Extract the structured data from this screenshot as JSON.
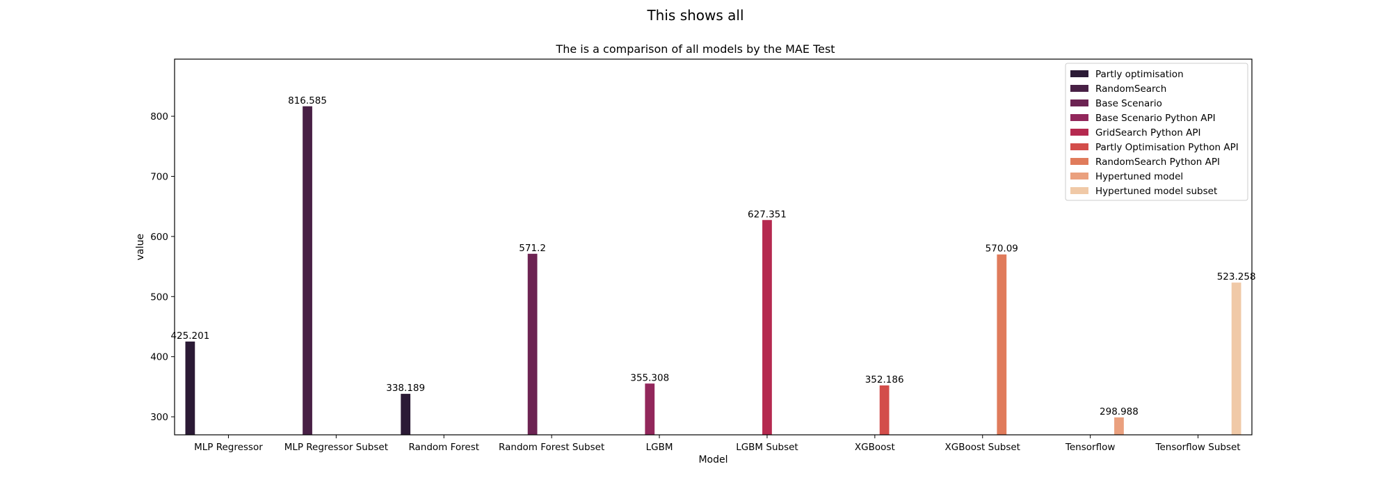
{
  "chart_data": {
    "type": "bar",
    "suptitle": "This shows all",
    "title": "The is a comparison of all models by the MAE Test",
    "xlabel": "Model",
    "ylabel": "value",
    "ylim": [
      270,
      895
    ],
    "yticks": [
      300,
      400,
      500,
      600,
      700,
      800
    ],
    "categories": [
      "MLP Regressor",
      "MLP Regressor Subset",
      "Random Forest",
      "Random Forest Subset",
      "LGBM",
      "LGBM Subset",
      "XGBoost",
      "XGBoost Subset",
      "Tensorflow",
      "Tensorflow Subset"
    ],
    "legend_position": "top-right",
    "series": [
      {
        "name": "Partly optimisation",
        "color": "#2b1a35",
        "values": [
          425.201,
          null,
          338.189,
          null,
          null,
          null,
          null,
          null,
          null,
          null
        ]
      },
      {
        "name": "RandomSearch",
        "color": "#482045",
        "values": [
          null,
          816.585,
          null,
          null,
          null,
          null,
          null,
          null,
          null,
          null
        ]
      },
      {
        "name": "Base Scenario",
        "color": "#6c2352",
        "values": [
          null,
          null,
          null,
          571.2,
          null,
          null,
          null,
          null,
          null,
          null
        ]
      },
      {
        "name": "Base Scenario Python API",
        "color": "#92275b",
        "values": [
          null,
          null,
          null,
          null,
          355.308,
          null,
          null,
          null,
          null,
          null
        ]
      },
      {
        "name": "GridSearch Python API",
        "color": "#b5294f",
        "values": [
          null,
          null,
          null,
          null,
          null,
          627.351,
          null,
          null,
          null,
          null
        ]
      },
      {
        "name": "Partly Optimisation Python API",
        "color": "#d34d4a",
        "values": [
          null,
          null,
          null,
          null,
          null,
          null,
          352.186,
          null,
          null,
          null
        ]
      },
      {
        "name": "RandomSearch Python API",
        "color": "#e07b5b",
        "values": [
          null,
          null,
          null,
          null,
          null,
          null,
          null,
          570.09,
          null,
          null
        ]
      },
      {
        "name": "Hypertuned model",
        "color": "#eaa07e",
        "values": [
          null,
          null,
          null,
          null,
          null,
          null,
          null,
          null,
          298.988,
          null
        ]
      },
      {
        "name": "Hypertuned model subset",
        "color": "#f0c9a7",
        "values": [
          null,
          null,
          null,
          null,
          null,
          null,
          null,
          null,
          null,
          523.258
        ]
      }
    ],
    "data_labels": [
      "425.201",
      "816.585",
      "338.189",
      "571.2",
      "355.308",
      "627.351",
      "352.186",
      "570.09",
      "298.988",
      "523.258"
    ]
  }
}
